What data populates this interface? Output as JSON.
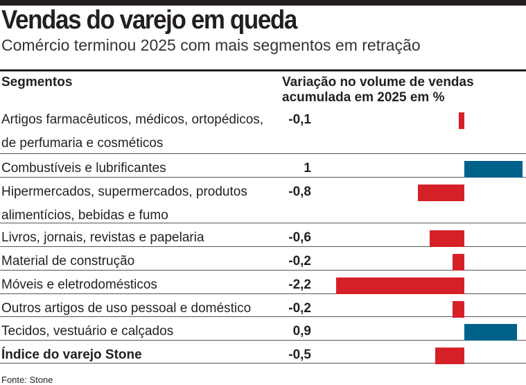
{
  "chart_data": {
    "type": "bar",
    "title": "Vendas do varejo em queda",
    "subtitle": "Comércio terminou 2025 com mais segmentos em retração",
    "column_headers": [
      "Segmentos",
      "Variação no volume de vendas acumulada em 2025 em %"
    ],
    "categories": [
      "Artigos farmacêuticos, médicos, ortopédicos, de perfumaria e cosméticos",
      "Combustíveis e lubrificantes",
      "Hipermercados, supermercados, produtos alimentícios, bebidas e fumo",
      "Livros, jornais, revistas e papelaria",
      "Material de construção",
      "Móveis e eletrodomésticos",
      "Outros artigos de uso pessoal e doméstico",
      "Tecidos, vestuário e calçados",
      "Índice do varejo Stone"
    ],
    "values": [
      -0.1,
      1,
      -0.8,
      -0.6,
      -0.2,
      -2.2,
      -0.2,
      0.9,
      -0.5
    ],
    "labels": [
      "-0,1",
      "1",
      "-0,8",
      "-0,6",
      "-0,2",
      "-2,2",
      "-0,2",
      "0,9",
      "-0,5"
    ],
    "colors": {
      "negative": "#d62027",
      "positive": "#00628b"
    },
    "source": "Fonte: Stone"
  }
}
